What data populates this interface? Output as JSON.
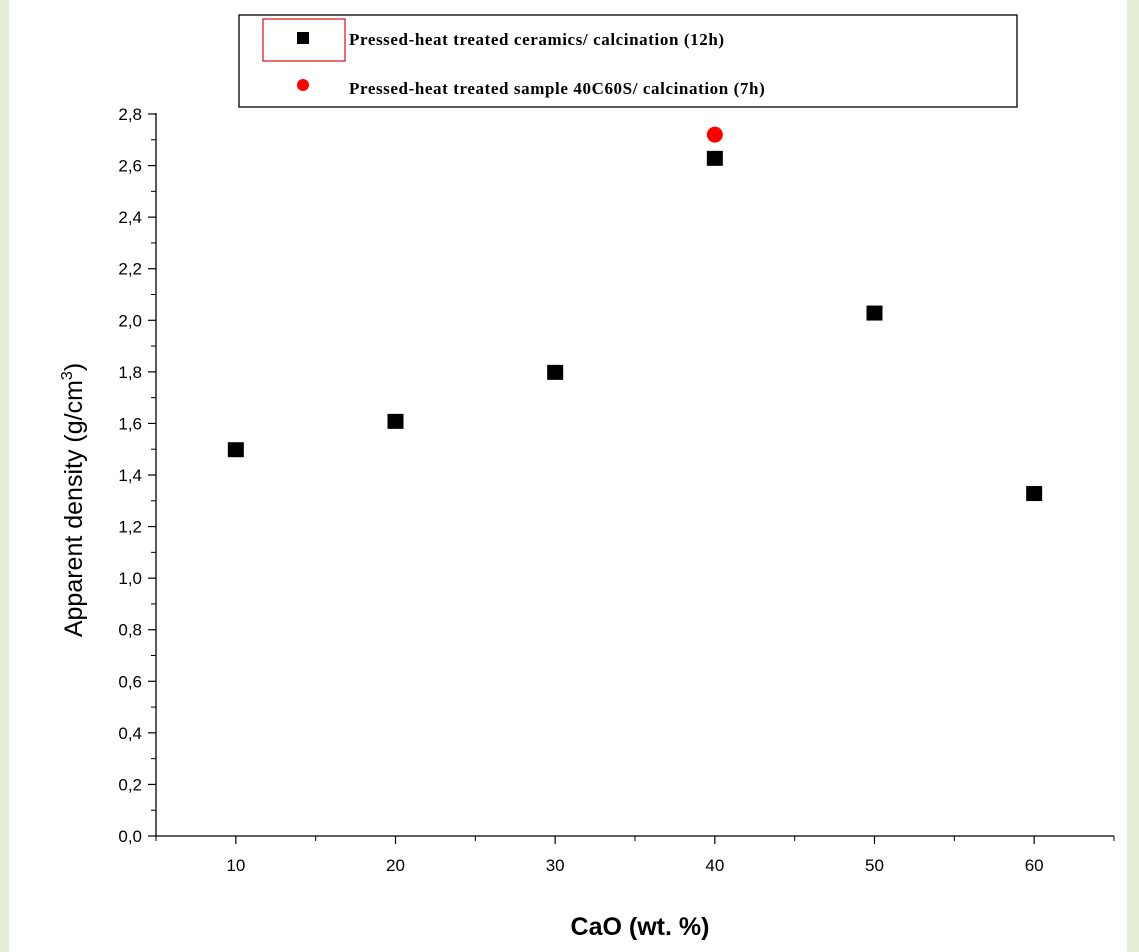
{
  "chart_data": {
    "type": "scatter",
    "title": "",
    "xlabel": "CaO (wt. %)",
    "ylabel": "Apparent density (g/cm",
    "ylabel_superscript": "3",
    "ylabel_suffix": ")",
    "xlim": [
      5,
      65
    ],
    "ylim": [
      0.0,
      2.8
    ],
    "x_ticks": [
      10,
      20,
      30,
      40,
      50,
      60
    ],
    "x_tick_labels": [
      "10",
      "20",
      "30",
      "40",
      "50",
      "60"
    ],
    "y_ticks": [
      0.0,
      0.2,
      0.4,
      0.6,
      0.8,
      1.0,
      1.2,
      1.4,
      1.6,
      1.8,
      2.0,
      2.2,
      2.4,
      2.6,
      2.8
    ],
    "y_tick_labels": [
      "0,0",
      "0,2",
      "0,4",
      "0,6",
      "0,8",
      "1,0",
      "1,2",
      "1,4",
      "1,6",
      "1,8",
      "2,0",
      "2,2",
      "2,4",
      "2,6",
      "2,8"
    ],
    "grid": false,
    "legend_position": "top-center",
    "series": [
      {
        "name": "Pressed-heat treated ceramics/ calcination (12h)",
        "marker": "square",
        "color": "#000000",
        "points": [
          {
            "x": 10,
            "y": 1.5
          },
          {
            "x": 20,
            "y": 1.61
          },
          {
            "x": 30,
            "y": 1.8
          },
          {
            "x": 40,
            "y": 2.63
          },
          {
            "x": 50,
            "y": 2.03
          },
          {
            "x": 60,
            "y": 1.33
          }
        ]
      },
      {
        "name": "Pressed-heat treated sample 40C60S/ calcination (7h)",
        "marker": "circle",
        "color": "#ff0000",
        "points": [
          {
            "x": 40,
            "y": 2.72
          }
        ]
      }
    ]
  }
}
